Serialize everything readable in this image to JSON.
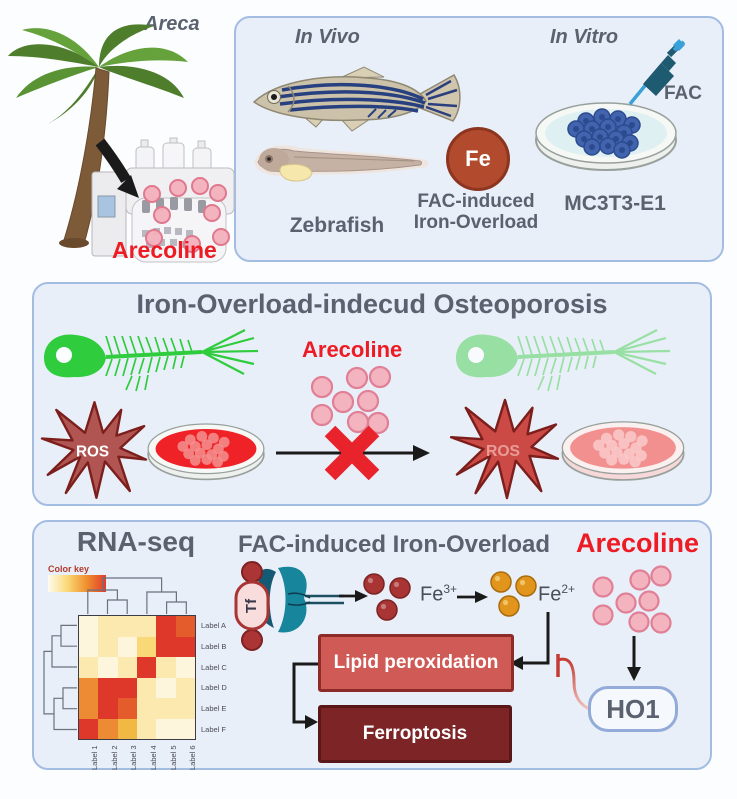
{
  "colors": {
    "panel_bg": "#e9eff8",
    "panel_border": "#a3bde2",
    "gray_text": "#5a6270",
    "red_text": "#ed1c24",
    "fe_circle_fill": "#b24a2d",
    "pink_dot_fill": "#f3b4c0",
    "pink_dot_border": "#e07f95",
    "ros_left_fill": "#b05552",
    "ros_right_fill": "#cb4a46",
    "lipid_box_fill": "#d05a55",
    "ferroptosis_box_fill": "#7c2426",
    "ho1_border": "#93abd8"
  },
  "top_left": {
    "areca": "Areca",
    "arecoline": "Arecoline"
  },
  "in_vivo_vitro_panel": {
    "in_vivo": "In Vivo",
    "in_vitro": "In Vitro",
    "zebrafish": "Zebrafish",
    "fe": "Fe",
    "fe_caption": [
      "FAC-induced",
      "Iron-Overload"
    ],
    "fac": "FAC",
    "cell_line": "MC3T3-E1"
  },
  "osteoporosis_panel": {
    "title": "Iron-Overload-indecud Osteoporosis",
    "arecoline": "Arecoline",
    "ros": "ROS"
  },
  "mechanism_panel": {
    "pathway_title": "FAC-induced Iron-Overload",
    "arecoline_title": "Arecoline",
    "tf": "Tf",
    "fe3_base": "Fe",
    "fe3_sup": "3+",
    "fe2_base": "Fe",
    "fe2_sup": "2+",
    "lipid": "Lipid peroxidation",
    "ferroptosis": "Ferroptosis",
    "ho1": "HO1"
  },
  "chart_data": {
    "type": "heatmap",
    "title": "RNA-seq",
    "color_key": {
      "label": "Color key",
      "gradient": [
        "#fefcf0",
        "#fbd977",
        "#ef8f2f",
        "#e23b2a"
      ]
    },
    "row_labels": [
      "Label A",
      "Label B",
      "Label C",
      "Label D",
      "Label E",
      "Label F"
    ],
    "col_labels": [
      "Label 1",
      "Label 2",
      "Label 3",
      "Label 4",
      "Label 5",
      "Label 6"
    ],
    "palette": [
      "#fdf6dc",
      "#fce9af",
      "#f9d878",
      "#f2b844",
      "#ec8b33",
      "#e55c2c",
      "#dd382a"
    ],
    "values": [
      [
        0,
        1,
        1,
        1,
        6,
        5
      ],
      [
        0,
        1,
        0,
        2,
        6,
        6
      ],
      [
        1,
        0,
        1,
        6,
        1,
        0
      ],
      [
        4,
        6,
        6,
        1,
        0,
        1
      ],
      [
        4,
        6,
        5,
        1,
        1,
        1
      ],
      [
        6,
        4,
        3,
        1,
        0,
        0
      ]
    ],
    "legend_position": "top-left",
    "dendrograms": [
      "rows",
      "columns"
    ]
  }
}
